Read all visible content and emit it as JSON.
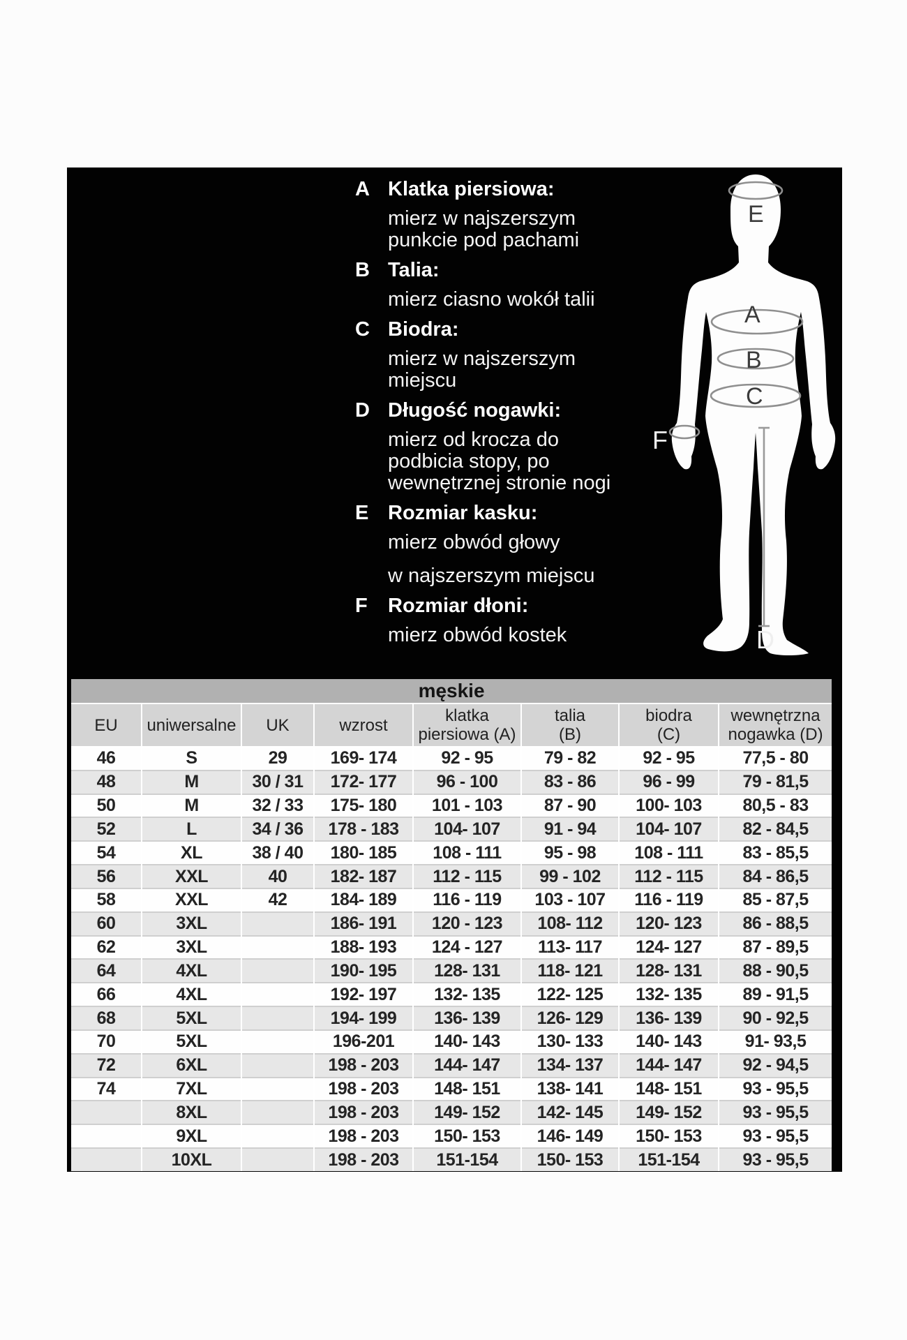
{
  "measurement_guide": {
    "items": [
      {
        "letter": "A",
        "title": "Klatka piersiowa:",
        "lines": [
          "mierz w najszerszym",
          "punkcie pod pachami"
        ]
      },
      {
        "letter": "B",
        "title": "Talia:",
        "lines": [
          "mierz ciasno wokół talii"
        ]
      },
      {
        "letter": "C",
        "title": "Biodra:",
        "lines": [
          "mierz w najszerszym",
          "miejscu"
        ]
      },
      {
        "letter": "D",
        "title": "Długość nogawki:",
        "lines": [
          "mierz od krocza do",
          "podbicia stopy, po",
          "wewnętrznej stronie nogi"
        ]
      },
      {
        "letter": "E",
        "title": "Rozmiar kasku:",
        "lines": [
          "mierz obwód głowy",
          "w najszerszym miejscu"
        ]
      },
      {
        "letter": "F",
        "title": "Rozmiar dłoni:",
        "lines": [
          "mierz obwód kostek"
        ]
      }
    ],
    "figure_labels": {
      "head": "E",
      "chest": "A",
      "waist": "B",
      "hips": "C",
      "hand": "F",
      "leg": "D"
    }
  },
  "size_table": {
    "title": "męskie",
    "headers": [
      "EU",
      "uniwersalne",
      "UK",
      "wzrost",
      "klatka\npiersiowa (A)",
      "talia\n(B)",
      "biodra\n(C)",
      "wewnętrzna\nnogawka (D)"
    ],
    "rows": [
      [
        "46",
        "S",
        "29",
        "169- 174",
        "92 - 95",
        "79 - 82",
        "92 - 95",
        "77,5 - 80"
      ],
      [
        "48",
        "M",
        "30 / 31",
        "172- 177",
        "96 - 100",
        "83 - 86",
        "96 - 99",
        "79 - 81,5"
      ],
      [
        "50",
        "M",
        "32 / 33",
        "175- 180",
        "101 - 103",
        "87 - 90",
        "100- 103",
        "80,5 - 83"
      ],
      [
        "52",
        "L",
        "34 / 36",
        "178 - 183",
        "104- 107",
        "91 - 94",
        "104- 107",
        "82 - 84,5"
      ],
      [
        "54",
        "XL",
        "38 / 40",
        "180- 185",
        "108 - 111",
        "95 - 98",
        "108 - 111",
        "83 - 85,5"
      ],
      [
        "56",
        "XXL",
        "40",
        "182- 187",
        "112 - 115",
        "99 - 102",
        "112 - 115",
        "84 - 86,5"
      ],
      [
        "58",
        "XXL",
        "42",
        "184- 189",
        "116 - 119",
        "103 - 107",
        "116 - 119",
        "85 - 87,5"
      ],
      [
        "60",
        "3XL",
        "",
        "186- 191",
        "120 - 123",
        "108- 112",
        "120- 123",
        "86 - 88,5"
      ],
      [
        "62",
        "3XL",
        "",
        "188- 193",
        "124 - 127",
        "113- 117",
        "124- 127",
        "87 - 89,5"
      ],
      [
        "64",
        "4XL",
        "",
        "190- 195",
        "128- 131",
        "118- 121",
        "128- 131",
        "88 - 90,5"
      ],
      [
        "66",
        "4XL",
        "",
        "192- 197",
        "132- 135",
        "122- 125",
        "132- 135",
        "89 - 91,5"
      ],
      [
        "68",
        "5XL",
        "",
        "194- 199",
        "136- 139",
        "126- 129",
        "136- 139",
        "90 - 92,5"
      ],
      [
        "70",
        "5XL",
        "",
        "196-201",
        "140- 143",
        "130- 133",
        "140- 143",
        "91- 93,5"
      ],
      [
        "72",
        "6XL",
        "",
        "198 - 203",
        "144- 147",
        "134- 137",
        "144- 147",
        "92 - 94,5"
      ],
      [
        "74",
        "7XL",
        "",
        "198 - 203",
        "148- 151",
        "138- 141",
        "148- 151",
        "93 - 95,5"
      ],
      [
        "",
        "8XL",
        "",
        "198 - 203",
        "149- 152",
        "142- 145",
        "149- 152",
        "93 - 95,5"
      ],
      [
        "",
        "9XL",
        "",
        "198 - 203",
        "150- 153",
        "146- 149",
        "150- 153",
        "93 - 95,5"
      ],
      [
        "",
        "10XL",
        "",
        "198 - 203",
        "151-154",
        "150- 153",
        "151-154",
        "93 - 95,5"
      ]
    ]
  },
  "colors": {
    "panel_background": "#020202",
    "table_title_band": "#b1b1b1",
    "table_header_band": "#d4d4d4",
    "row_stripe": "#e7e7e7",
    "tape_line": "#8f8f8f"
  }
}
